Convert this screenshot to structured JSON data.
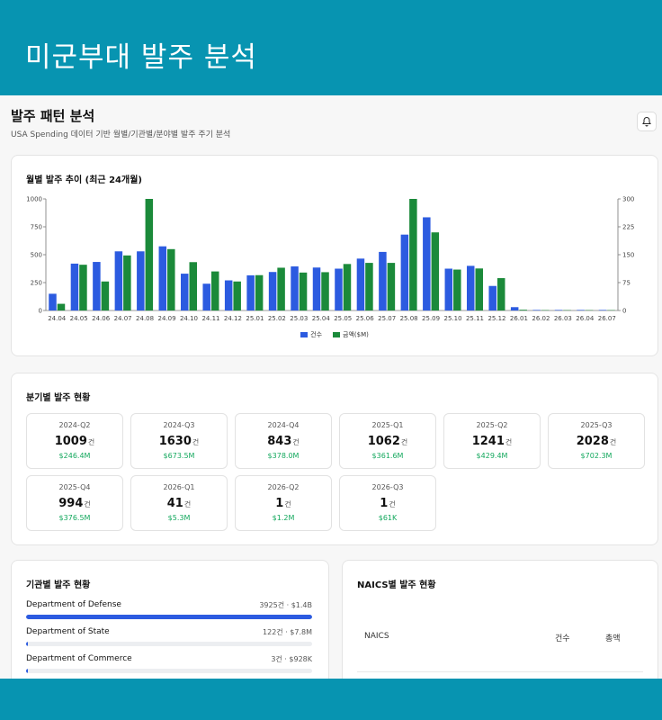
{
  "banner": {
    "title": "미군부대 발주 분석"
  },
  "page": {
    "title": "발주 패턴 분석",
    "subtitle": "USA Spending 데이터 기반 월별/기관별/분야별 발주 주기 분석"
  },
  "monthly_card": {
    "title": "월별 발주 추이 (최근 24개월)"
  },
  "colors": {
    "count": "#2c5be0",
    "amount": "#1b8a3a",
    "amount_text": "#13a85d",
    "accent": "#0794b1"
  },
  "chart_data": {
    "type": "bar",
    "title": "월별 발주 추이 (최근 24개월)",
    "categories": [
      "24.04",
      "24.05",
      "24.06",
      "24.07",
      "24.08",
      "24.09",
      "24.10",
      "24.11",
      "24.12",
      "25.01",
      "25.02",
      "25.03",
      "25.04",
      "25.05",
      "25.06",
      "25.07",
      "25.08",
      "25.09",
      "25.10",
      "25.11",
      "25.12",
      "26.01",
      "26.02",
      "26.03",
      "26.04",
      "26.07"
    ],
    "series": [
      {
        "name": "건수",
        "axis": "left",
        "values": [
          150,
          420,
          435,
          530,
          530,
          575,
          330,
          240,
          270,
          315,
          345,
          395,
          385,
          375,
          465,
          525,
          680,
          835,
          375,
          400,
          220,
          30,
          3,
          1,
          1,
          1
        ]
      },
      {
        "name": "금액($M)",
        "axis": "right",
        "values": [
          18,
          123,
          78,
          148,
          300,
          165,
          130,
          105,
          78,
          95,
          115,
          102,
          103,
          125,
          128,
          128,
          300,
          210,
          110,
          113,
          87,
          2,
          1,
          0.5,
          0.3,
          0.1
        ]
      }
    ],
    "y_left": {
      "ticks": [
        "0",
        "250",
        "500",
        "750",
        "1000"
      ],
      "lim": [
        0,
        1000
      ]
    },
    "y_right": {
      "ticks": [
        "0",
        "75",
        "150",
        "225",
        "300"
      ],
      "lim": [
        0,
        300
      ]
    },
    "grid": false,
    "legend_position": "bottom"
  },
  "quarterly_card": {
    "title": "분기별 발주 현황",
    "unit": "건",
    "items": [
      {
        "period": "2024-Q2",
        "count": "1009",
        "amount": "$246.4M"
      },
      {
        "period": "2024-Q3",
        "count": "1630",
        "amount": "$673.5M"
      },
      {
        "period": "2024-Q4",
        "count": "843",
        "amount": "$378.0M"
      },
      {
        "period": "2025-Q1",
        "count": "1062",
        "amount": "$361.6M"
      },
      {
        "period": "2025-Q2",
        "count": "1241",
        "amount": "$429.4M"
      },
      {
        "period": "2025-Q3",
        "count": "2028",
        "amount": "$702.3M"
      },
      {
        "period": "2025-Q4",
        "count": "994",
        "amount": "$376.5M"
      },
      {
        "period": "2026-Q1",
        "count": "41",
        "amount": "$5.3M"
      },
      {
        "period": "2026-Q2",
        "count": "1",
        "amount": "$1.2M"
      },
      {
        "period": "2026-Q3",
        "count": "1",
        "amount": "$61K"
      }
    ]
  },
  "agency_card": {
    "title": "기관별 발주 현황",
    "items": [
      {
        "name": "Department of Defense",
        "value": "3925건 · $1.4B",
        "share": 1.0
      },
      {
        "name": "Department of State",
        "value": "122건 · $7.8M",
        "share": 0.006
      },
      {
        "name": "Department of Commerce",
        "value": "3건 · $928K",
        "share": 0.002
      }
    ]
  },
  "naics_card": {
    "title": "NAICS별 발주 현황",
    "headers": {
      "naics": "NAICS",
      "count": "건수",
      "total": "총액"
    }
  }
}
